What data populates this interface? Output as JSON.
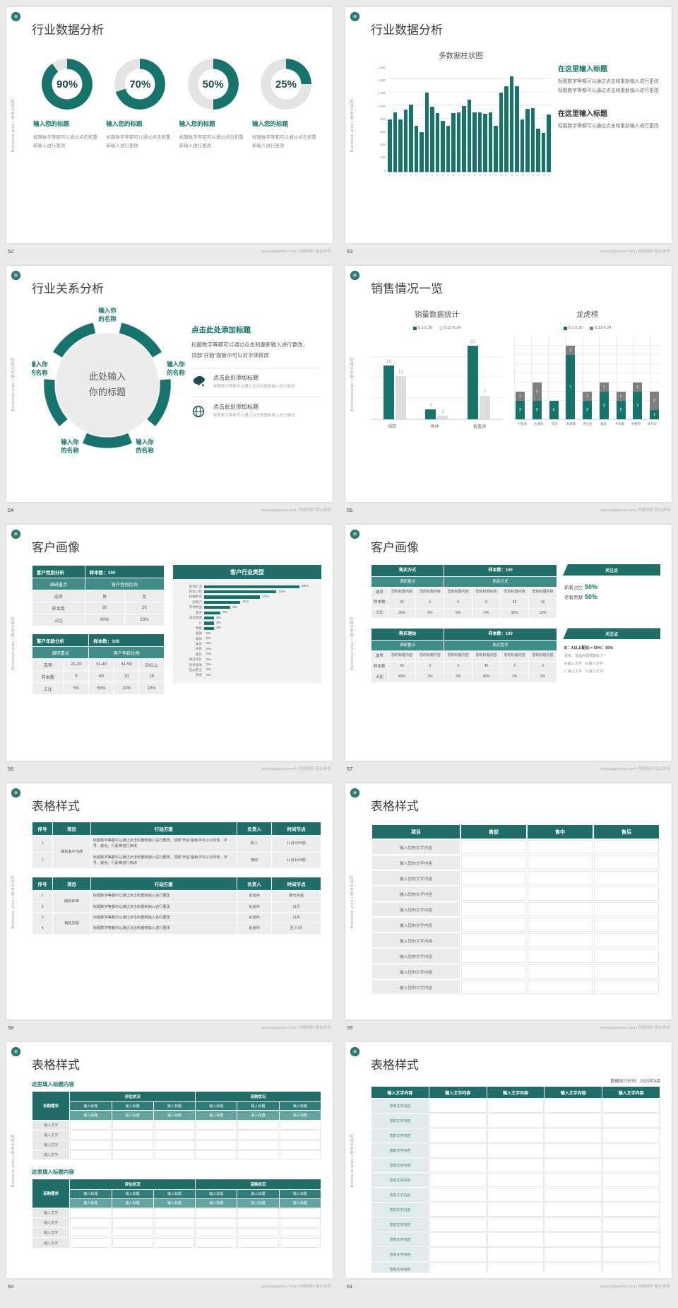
{
  "common": {
    "sidebar_text": "Business plan | 商业计划书",
    "footer_url": "www.pptgenius.com | 内部资料 禁止外传",
    "accent_color": "#17746d",
    "logo": "emblem-icon"
  },
  "slides": {
    "s52": {
      "page": "52",
      "title": "行业数据分析",
      "items": [
        {
          "pct": 90,
          "label": "90%",
          "head": "输入您的标题",
          "para": "标题数字等都可以通过点击和重新输入进行更改"
        },
        {
          "pct": 70,
          "label": "70%",
          "head": "输入您的标题",
          "para": "标题数字等都可以通过点击和重新输入进行更改"
        },
        {
          "pct": 50,
          "label": "50%",
          "head": "输入您的标题",
          "para": "标题数字等都可以通过点击和重新输入进行更改"
        },
        {
          "pct": 25,
          "label": "25%",
          "head": "输入您的标题",
          "para": "标题数字等都可以通过点击和重新输入进行更改"
        }
      ]
    },
    "s53": {
      "page": "53",
      "title": "行业数据分析",
      "chart": {
        "type": "bar",
        "title": "多数据柱状图",
        "ymax": 1600,
        "yticks": [
          "1,600",
          "1,400",
          "1,200",
          "1,000",
          "800",
          "600",
          "400",
          "200",
          "0"
        ],
        "values": [
          790,
          900,
          800,
          950,
          1020,
          700,
          600,
          1200,
          990,
          890,
          770,
          700,
          890,
          900,
          1000,
          1100,
          900,
          900,
          880,
          900,
          700,
          1200,
          1300,
          1450,
          1300,
          800,
          960,
          970,
          660,
          590,
          870
        ]
      },
      "head1": "在这里输入标题",
      "para1": "标题数字等都可以通过点击和重新输入进行更改标题数字等都可以通过点击和重新输入进行更改",
      "head2": "在这里输入标题",
      "para2": "标题数字等都可以通过点击和重新输入进行更改"
    },
    "s54": {
      "page": "54",
      "title": "行业关系分析",
      "center_text": "此处输入你的标题",
      "petals": [
        "输入你的名称",
        "输入你的名称",
        "输入你的名称",
        "输入你的名称",
        "输入你的名称"
      ],
      "head": "点击此处添加标题",
      "para": "标题数字等都可以通过点击和重新输入进行更改，顶部“开始”面板中可以对字体修改",
      "items": [
        {
          "icon": "china-map-icon",
          "title": "点击此处添加标题",
          "sub": "标题数字等都可以通过点击和重新输入进行更改"
        },
        {
          "icon": "globe-icon",
          "title": "点击此处添加标题",
          "sub": "标题数字等都可以通过点击和重新输入进行更改"
        }
      ]
    },
    "s55": {
      "page": "55",
      "title": "销售情况一览",
      "left_chart": {
        "type": "bar",
        "title": "销量数据统计",
        "legend": [
          "5.1-5.30",
          "5.31-6.24"
        ],
        "categories": [
          "福田",
          "梅林",
          "香蜜湖"
        ],
        "series": [
          {
            "name": "5.1-5.30",
            "color": "#17746d",
            "values": [
              16,
              3,
              22
            ]
          },
          {
            "name": "5.31-6.24",
            "color": "#dcdcdc",
            "values": [
              13,
              1,
              7
            ]
          }
        ],
        "ymax": 25
      },
      "right_chart": {
        "type": "stacked-bar",
        "title": "龙虎榜",
        "legend": [
          "5.1-5.30",
          "5.31-6.24"
        ],
        "categories": [
          "付鱼湘",
          "左湘南",
          "陈玲",
          "寿新慧",
          "李业团",
          "葛梅",
          "尹华娥",
          "钟健明",
          "周伟华"
        ],
        "series": [
          {
            "name": "5.1-5.30",
            "color": "#17746d",
            "values": [
              2,
              2,
              2,
              7,
              2,
              3,
              2,
              3,
              1
            ]
          },
          {
            "name": "5.31-6.24",
            "color": "#7f7f7f",
            "values": [
              1,
              2,
              0,
              1,
              1,
              1,
              1,
              1,
              2
            ]
          }
        ],
        "ymax": 9
      }
    },
    "s56": {
      "page": "56",
      "title": "客户画像",
      "table1": {
        "h1": [
          "客户性别分析",
          "样本数：100"
        ],
        "h2": [
          "调研重点",
          "客户性别比例"
        ],
        "rows": [
          [
            "选项",
            "男",
            "女"
          ],
          [
            "样本数",
            "80",
            "20"
          ],
          [
            "占比",
            "80%",
            "20%"
          ]
        ]
      },
      "table2": {
        "h1": [
          "客户年龄分析",
          "样本数：100"
        ],
        "h2": [
          "调研重点",
          "客户年龄比例"
        ],
        "rows": [
          [
            "选项",
            "20-30",
            "31-40",
            "41-50",
            "50以上"
          ],
          [
            "样本数",
            "5",
            "60",
            "20",
            "15"
          ],
          [
            "占比",
            "5%",
            "60%",
            "20%",
            "15%"
          ]
        ]
      },
      "hbar": {
        "type": "bar",
        "title": "客户行业类型",
        "max": 29,
        "items": [
          [
            "能源矿业",
            29
          ],
          [
            "建筑工程",
            22
          ],
          [
            "机械制造",
            17
          ],
          [
            "房地产",
            11
          ],
          [
            "农林牧渔",
            8
          ],
          [
            "医学",
            5
          ],
          [
            "酒店旅游",
            3
          ],
          [
            "IT",
            3
          ],
          [
            "零售",
            3
          ],
          [
            "金融",
            0
          ],
          [
            "媒体",
            0
          ],
          [
            "娱乐",
            0
          ],
          [
            "体育",
            0
          ],
          [
            "餐饮",
            0
          ],
          [
            "事业单位",
            0
          ],
          [
            "投资金融",
            0
          ],
          [
            "自由职业",
            0
          ],
          [
            "其他",
            0
          ]
        ]
      }
    },
    "s57": {
      "page": "57",
      "title": "客户画像",
      "block1": {
        "h1a": "购买方式",
        "h1b": "样本数：100",
        "h2a": "调研重点",
        "h2b": "购买方式",
        "rows": [
          [
            "选项",
            "您的标题内容",
            "您的标题内容",
            "您的标题内容",
            "您的标题内容",
            "您的标题内容",
            "您的标题内容"
          ],
          [
            "样本数",
            "35",
            "5",
            "5",
            "5",
            "35",
            "15"
          ],
          [
            "占比",
            "35%",
            "5%",
            "5%",
            "5%",
            "35%",
            "15%"
          ]
        ],
        "note_head": "关注点",
        "note_lines": [
          {
            "label": "新客占比",
            "value": "50%"
          },
          {
            "label": "老客贡献",
            "value": "50%"
          }
        ]
      },
      "block2": {
        "h1a": "购买理由",
        "h1b": "样本数：100",
        "h2a": "调研重点",
        "h2b": "购买型号",
        "rows": [
          [
            "选项",
            "您的标题内容",
            "您的标题内容",
            "您的标题内容",
            "您的标题内容",
            "您的标题内容",
            "您的标题内容"
          ],
          [
            "样本数",
            "45",
            "2",
            "3",
            "45",
            "2",
            "3"
          ],
          [
            "占比",
            "45%",
            "2%",
            "3%",
            "45%",
            "2%",
            "3%"
          ]
        ],
        "note_head": "关注点",
        "note_lines2": [
          "B：A以上配比 = 50%：50%",
          "思考：单品利润预期多少？",
          "A.输入文字　B.输入文字",
          "C.输入文字　D.输入文字"
        ]
      }
    },
    "s58": {
      "page": "58",
      "title": "表格样式",
      "headers": [
        "序号",
        "项目",
        "行动方案",
        "负责人",
        "时间节点"
      ],
      "table1": [
        {
          "no": "1",
          "proj": "保有客户沟通",
          "proj_rs": 2,
          "action": "标题数字等都可以通过点击和重新输入进行更改，顶部“开始”面板中可以对字体、字号、颜色、行距等进行修改",
          "owner": "张三",
          "time": "11月30日前"
        },
        {
          "no": "2",
          "action": "标题数字等都可以通过点击和重新输入进行更改，顶部“开始”面板中可以对字体、字号、颜色、行距等进行修改",
          "owner": "李四",
          "time": "11月15日前"
        }
      ],
      "table2": [
        {
          "no": "1",
          "proj": "服务标准",
          "proj_rs": 2,
          "action": "标题数字等都可以通过点击和重新输入进行更改",
          "owner": "肖迪伟",
          "time": "即日实施"
        },
        {
          "no": "2",
          "action": "标题数字等都可以通过点击和重新输入进行更改",
          "owner": "肖迪伟",
          "time": "11月"
        },
        {
          "no": "3",
          "proj": "销售流程",
          "proj_rs": 2,
          "action": "标题数字等都可以通过点击和重新输入进行更改",
          "owner": "肖迪伟",
          "time": "11月"
        },
        {
          "no": "4",
          "action": "标题数字等都可以通过点击和重新输入进行更改",
          "owner": "肖迪伟",
          "time": "至少1月"
        }
      ]
    },
    "s59": {
      "page": "59",
      "title": "表格样式",
      "headers": [
        "项目",
        "售前",
        "售中",
        "售后"
      ],
      "row_label": "输入您的文字内容",
      "row_count": 10
    },
    "s60": {
      "page": "60",
      "title": "表格样式",
      "block_title": "这里填入标题内容",
      "corner": "采购需求",
      "group1": "评估状况",
      "group2": "采购状况",
      "col_header": "输入标题",
      "body_label": "输入文字",
      "body_rows": 4,
      "blocks": 2
    },
    "s61": {
      "page": "61",
      "title": "表格样式",
      "time_note": "数据统计时间：2025年9月",
      "header_label": "输入文字内容",
      "cols": 5,
      "row_label": "您的文字内容",
      "row_count": 14
    }
  }
}
